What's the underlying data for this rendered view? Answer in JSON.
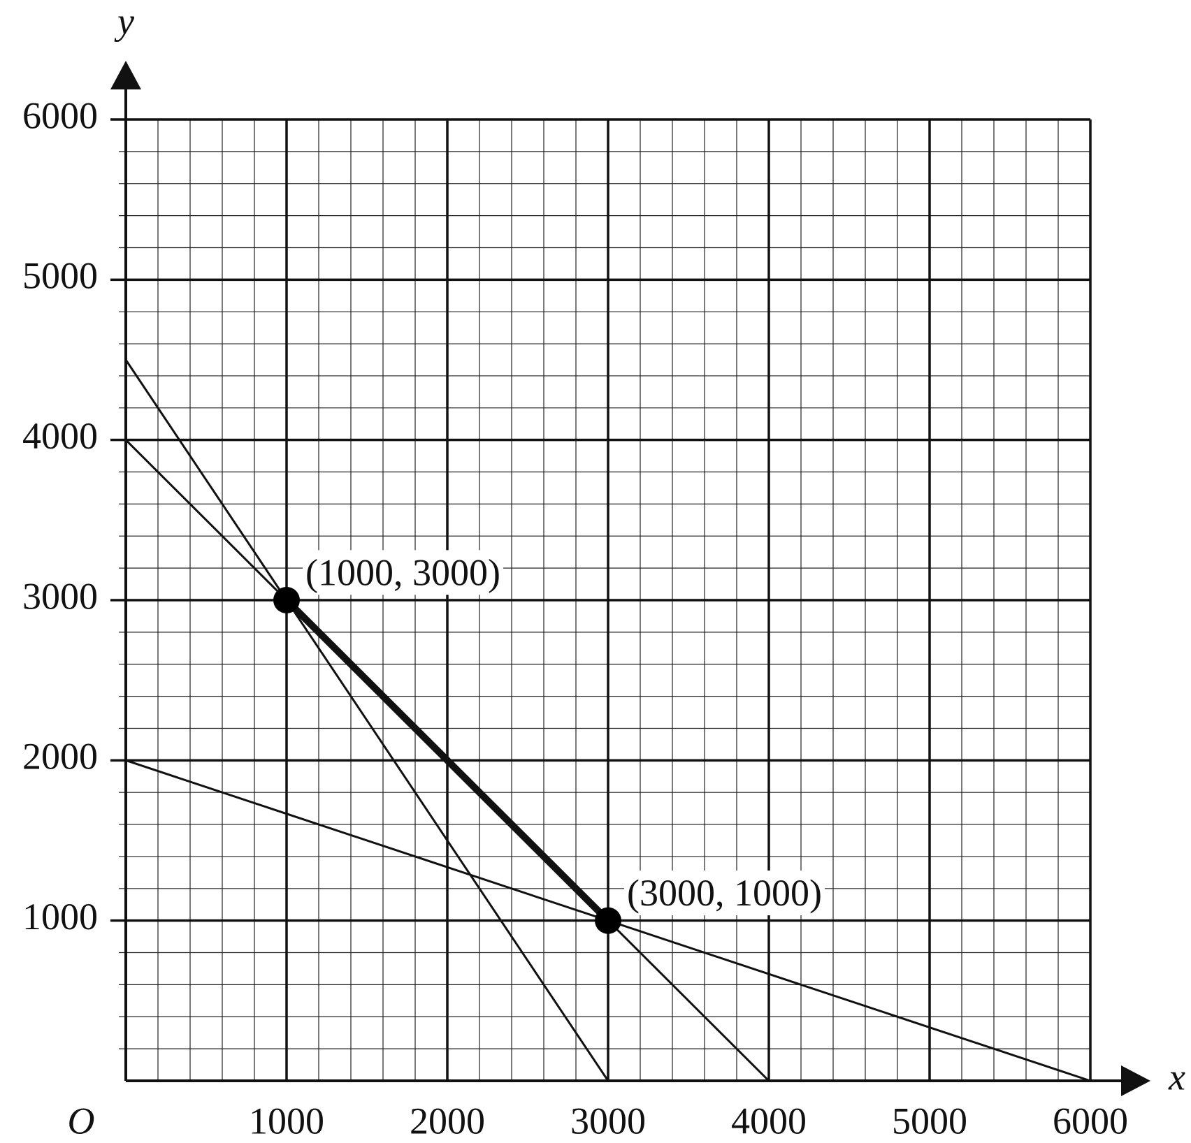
{
  "chart_data": {
    "type": "line",
    "x_label": "x",
    "y_label": "y",
    "origin_label": "O",
    "xlim": [
      0,
      6000
    ],
    "ylim": [
      0,
      6000
    ],
    "xticks": [
      1000,
      2000,
      3000,
      4000,
      5000,
      6000
    ],
    "yticks": [
      1000,
      2000,
      3000,
      4000,
      5000,
      6000
    ],
    "grid": true,
    "minor_grid_step": 200,
    "series": [
      {
        "color": "#111111",
        "line_width": 3,
        "x": [
          0,
          3000
        ],
        "values": [
          4500,
          0
        ]
      },
      {
        "color": "#111111",
        "line_width": 3,
        "x": [
          0,
          4000
        ],
        "values": [
          4000,
          0
        ]
      },
      {
        "color": "#111111",
        "line_width": 3,
        "x": [
          0,
          6000
        ],
        "values": [
          2000,
          0
        ]
      },
      {
        "color": "#111111",
        "line_width": 10,
        "x": [
          1000,
          3000
        ],
        "values": [
          3000,
          1000
        ]
      }
    ],
    "points": {
      "color": "#000000",
      "x": [
        1000,
        3000
      ],
      "values": [
        3000,
        1000
      ],
      "value_labels": [
        "(1000, 3000)",
        "(3000, 1000)"
      ]
    }
  }
}
